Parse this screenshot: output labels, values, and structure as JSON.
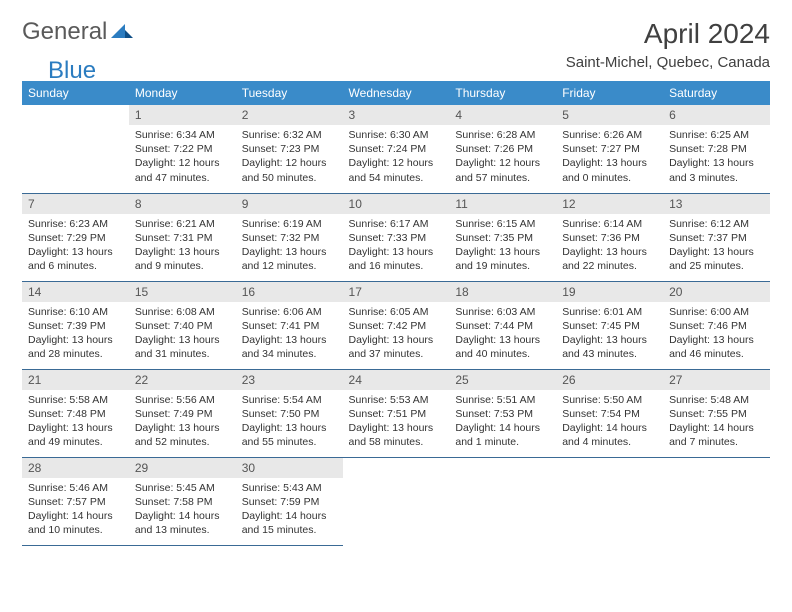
{
  "logo": {
    "text1": "General",
    "text2": "Blue"
  },
  "title": "April 2024",
  "location": "Saint-Michel, Quebec, Canada",
  "colors": {
    "header_bg": "#3a8bc9",
    "header_text": "#ffffff",
    "daynum_bg": "#e8e8e8",
    "cell_border": "#3a6a95",
    "logo_gray": "#5a5a5a",
    "logo_blue": "#2b7cc0"
  },
  "weekdays": [
    "Sunday",
    "Monday",
    "Tuesday",
    "Wednesday",
    "Thursday",
    "Friday",
    "Saturday"
  ],
  "first_weekday_index": 1,
  "days_in_month": 30,
  "days": {
    "1": {
      "sunrise": "6:34 AM",
      "sunset": "7:22 PM",
      "daylight": "12 hours and 47 minutes."
    },
    "2": {
      "sunrise": "6:32 AM",
      "sunset": "7:23 PM",
      "daylight": "12 hours and 50 minutes."
    },
    "3": {
      "sunrise": "6:30 AM",
      "sunset": "7:24 PM",
      "daylight": "12 hours and 54 minutes."
    },
    "4": {
      "sunrise": "6:28 AM",
      "sunset": "7:26 PM",
      "daylight": "12 hours and 57 minutes."
    },
    "5": {
      "sunrise": "6:26 AM",
      "sunset": "7:27 PM",
      "daylight": "13 hours and 0 minutes."
    },
    "6": {
      "sunrise": "6:25 AM",
      "sunset": "7:28 PM",
      "daylight": "13 hours and 3 minutes."
    },
    "7": {
      "sunrise": "6:23 AM",
      "sunset": "7:29 PM",
      "daylight": "13 hours and 6 minutes."
    },
    "8": {
      "sunrise": "6:21 AM",
      "sunset": "7:31 PM",
      "daylight": "13 hours and 9 minutes."
    },
    "9": {
      "sunrise": "6:19 AM",
      "sunset": "7:32 PM",
      "daylight": "13 hours and 12 minutes."
    },
    "10": {
      "sunrise": "6:17 AM",
      "sunset": "7:33 PM",
      "daylight": "13 hours and 16 minutes."
    },
    "11": {
      "sunrise": "6:15 AM",
      "sunset": "7:35 PM",
      "daylight": "13 hours and 19 minutes."
    },
    "12": {
      "sunrise": "6:14 AM",
      "sunset": "7:36 PM",
      "daylight": "13 hours and 22 minutes."
    },
    "13": {
      "sunrise": "6:12 AM",
      "sunset": "7:37 PM",
      "daylight": "13 hours and 25 minutes."
    },
    "14": {
      "sunrise": "6:10 AM",
      "sunset": "7:39 PM",
      "daylight": "13 hours and 28 minutes."
    },
    "15": {
      "sunrise": "6:08 AM",
      "sunset": "7:40 PM",
      "daylight": "13 hours and 31 minutes."
    },
    "16": {
      "sunrise": "6:06 AM",
      "sunset": "7:41 PM",
      "daylight": "13 hours and 34 minutes."
    },
    "17": {
      "sunrise": "6:05 AM",
      "sunset": "7:42 PM",
      "daylight": "13 hours and 37 minutes."
    },
    "18": {
      "sunrise": "6:03 AM",
      "sunset": "7:44 PM",
      "daylight": "13 hours and 40 minutes."
    },
    "19": {
      "sunrise": "6:01 AM",
      "sunset": "7:45 PM",
      "daylight": "13 hours and 43 minutes."
    },
    "20": {
      "sunrise": "6:00 AM",
      "sunset": "7:46 PM",
      "daylight": "13 hours and 46 minutes."
    },
    "21": {
      "sunrise": "5:58 AM",
      "sunset": "7:48 PM",
      "daylight": "13 hours and 49 minutes."
    },
    "22": {
      "sunrise": "5:56 AM",
      "sunset": "7:49 PM",
      "daylight": "13 hours and 52 minutes."
    },
    "23": {
      "sunrise": "5:54 AM",
      "sunset": "7:50 PM",
      "daylight": "13 hours and 55 minutes."
    },
    "24": {
      "sunrise": "5:53 AM",
      "sunset": "7:51 PM",
      "daylight": "13 hours and 58 minutes."
    },
    "25": {
      "sunrise": "5:51 AM",
      "sunset": "7:53 PM",
      "daylight": "14 hours and 1 minute."
    },
    "26": {
      "sunrise": "5:50 AM",
      "sunset": "7:54 PM",
      "daylight": "14 hours and 4 minutes."
    },
    "27": {
      "sunrise": "5:48 AM",
      "sunset": "7:55 PM",
      "daylight": "14 hours and 7 minutes."
    },
    "28": {
      "sunrise": "5:46 AM",
      "sunset": "7:57 PM",
      "daylight": "14 hours and 10 minutes."
    },
    "29": {
      "sunrise": "5:45 AM",
      "sunset": "7:58 PM",
      "daylight": "14 hours and 13 minutes."
    },
    "30": {
      "sunrise": "5:43 AM",
      "sunset": "7:59 PM",
      "daylight": "14 hours and 15 minutes."
    }
  },
  "labels": {
    "sunrise": "Sunrise: ",
    "sunset": "Sunset: ",
    "daylight": "Daylight: "
  }
}
